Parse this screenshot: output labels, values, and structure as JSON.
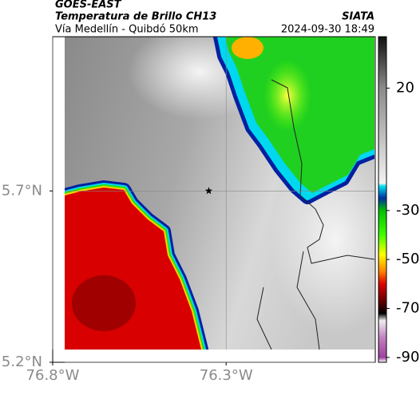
{
  "header": {
    "satellite": "GOES-EAST",
    "product": "Temperatura de Brillo CH13",
    "source": "SIATA",
    "route": "Vía Medellín - Quibdó 50km",
    "timestamp": "2024-09-30 18:49"
  },
  "chart_data": {
    "type": "map",
    "xlim": [
      -76.8,
      -75.87
    ],
    "ylim": [
      5.2,
      6.15
    ],
    "xticks": [
      {
        "value": -76.8,
        "label": "76.8°W"
      },
      {
        "value": -76.3,
        "label": "76.3°W"
      }
    ],
    "yticks": [
      {
        "value": 5.2,
        "label": "5.2°N"
      },
      {
        "value": 5.7,
        "label": "5.7°N"
      }
    ],
    "grid": true,
    "marker": {
      "lon": -76.35,
      "lat": 5.7
    },
    "colorbar": {
      "lim": [
        -92,
        41
      ],
      "ticks": [
        20,
        -30,
        -50,
        -70,
        -90
      ]
    }
  }
}
